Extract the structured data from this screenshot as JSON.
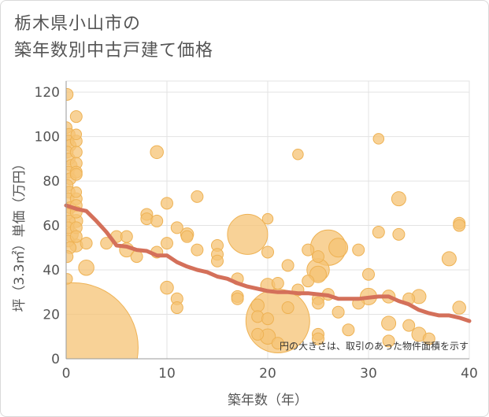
{
  "chart_data": {
    "type": "scatter",
    "title_lines": [
      "栃木県小山市の",
      "築年数別中古戸建て価格"
    ],
    "xlabel": "築年数（年）",
    "ylabel": "坪（3.3㎡）単価（万円）",
    "xlim": [
      0,
      40
    ],
    "ylim": [
      0,
      125
    ],
    "x_ticks": [
      0,
      10,
      20,
      30,
      40
    ],
    "y_ticks": [
      0,
      20,
      40,
      60,
      80,
      100,
      120
    ],
    "note": "円の大きさは、取引のあった物件面積を示す",
    "colors": {
      "bubble": "#f5c374",
      "bubble_stroke": "#eeb254",
      "trend": "#d4705a",
      "grid": "#e3e3e3",
      "axis": "#999999"
    },
    "points": [
      {
        "x": 0.1,
        "y": 119,
        "s": 1
      },
      {
        "x": 0,
        "y": 104,
        "s": 1
      },
      {
        "x": 0.3,
        "y": 101,
        "s": 1
      },
      {
        "x": 0.2,
        "y": 98,
        "s": 1
      },
      {
        "x": 0.4,
        "y": 96,
        "s": 1
      },
      {
        "x": 0.1,
        "y": 93,
        "s": 1
      },
      {
        "x": 0.3,
        "y": 90,
        "s": 1
      },
      {
        "x": 0.5,
        "y": 87,
        "s": 1
      },
      {
        "x": 0.2,
        "y": 84,
        "s": 1
      },
      {
        "x": 0.4,
        "y": 81,
        "s": 1
      },
      {
        "x": 0.1,
        "y": 78,
        "s": 1
      },
      {
        "x": 0.3,
        "y": 75,
        "s": 1
      },
      {
        "x": 0.2,
        "y": 72,
        "s": 1
      },
      {
        "x": 0.4,
        "y": 68,
        "s": 1
      },
      {
        "x": 0.1,
        "y": 65,
        "s": 1
      },
      {
        "x": 0.3,
        "y": 62,
        "s": 1
      },
      {
        "x": 0.2,
        "y": 59,
        "s": 1
      },
      {
        "x": 0.5,
        "y": 56,
        "s": 1.2
      },
      {
        "x": 0.2,
        "y": 53,
        "s": 1
      },
      {
        "x": 0.4,
        "y": 50,
        "s": 1
      },
      {
        "x": 0.1,
        "y": 46,
        "s": 1
      },
      {
        "x": 0.1,
        "y": 36,
        "s": 0.9
      },
      {
        "x": 1,
        "y": 109,
        "s": 1
      },
      {
        "x": 1,
        "y": 101,
        "s": 0.9
      },
      {
        "x": 1,
        "y": 98,
        "s": 1
      },
      {
        "x": 1,
        "y": 93,
        "s": 1
      },
      {
        "x": 1,
        "y": 88,
        "s": 1
      },
      {
        "x": 1,
        "y": 84,
        "s": 1
      },
      {
        "x": 1,
        "y": 83,
        "s": 1
      },
      {
        "x": 1,
        "y": 75,
        "s": 0.9
      },
      {
        "x": 1,
        "y": 72,
        "s": 1
      },
      {
        "x": 1,
        "y": 69,
        "s": 1
      },
      {
        "x": 1,
        "y": 66,
        "s": 1
      },
      {
        "x": 1,
        "y": 62,
        "s": 1.1
      },
      {
        "x": 1,
        "y": 59,
        "s": 1
      },
      {
        "x": 1,
        "y": 55,
        "s": 1
      },
      {
        "x": 1,
        "y": 51,
        "s": 1.1
      },
      {
        "x": 0.7,
        "y": 5,
        "s": 11
      },
      {
        "x": 2,
        "y": 52,
        "s": 1
      },
      {
        "x": 2,
        "y": 41,
        "s": 1.3
      },
      {
        "x": 4,
        "y": 52,
        "s": 1
      },
      {
        "x": 5,
        "y": 55,
        "s": 1
      },
      {
        "x": 6,
        "y": 55,
        "s": 1
      },
      {
        "x": 6,
        "y": 49,
        "s": 1.2
      },
      {
        "x": 7,
        "y": 46,
        "s": 1
      },
      {
        "x": 8,
        "y": 65,
        "s": 1
      },
      {
        "x": 8,
        "y": 63,
        "s": 1
      },
      {
        "x": 9,
        "y": 93,
        "s": 1.1
      },
      {
        "x": 9,
        "y": 62,
        "s": 1
      },
      {
        "x": 9,
        "y": 48,
        "s": 1
      },
      {
        "x": 10,
        "y": 70,
        "s": 1
      },
      {
        "x": 10,
        "y": 52,
        "s": 1
      },
      {
        "x": 10,
        "y": 32,
        "s": 1.1
      },
      {
        "x": 11,
        "y": 59,
        "s": 1
      },
      {
        "x": 11,
        "y": 27,
        "s": 1
      },
      {
        "x": 11,
        "y": 23,
        "s": 1
      },
      {
        "x": 12,
        "y": 56,
        "s": 1.1
      },
      {
        "x": 12,
        "y": 55,
        "s": 1
      },
      {
        "x": 13,
        "y": 73,
        "s": 1
      },
      {
        "x": 13,
        "y": 49,
        "s": 1
      },
      {
        "x": 15,
        "y": 51,
        "s": 1
      },
      {
        "x": 15,
        "y": 47,
        "s": 1
      },
      {
        "x": 15,
        "y": 44,
        "s": 1
      },
      {
        "x": 17,
        "y": 36,
        "s": 1
      },
      {
        "x": 17,
        "y": 28,
        "s": 1
      },
      {
        "x": 17,
        "y": 27,
        "s": 1
      },
      {
        "x": 18,
        "y": 56,
        "s": 3.4
      },
      {
        "x": 19,
        "y": 24,
        "s": 1.1
      },
      {
        "x": 19,
        "y": 19,
        "s": 1
      },
      {
        "x": 19,
        "y": 11,
        "s": 1
      },
      {
        "x": 20,
        "y": 63,
        "s": 0.9
      },
      {
        "x": 20,
        "y": 48,
        "s": 1
      },
      {
        "x": 20,
        "y": 33,
        "s": 1.2
      },
      {
        "x": 20,
        "y": 18,
        "s": 1
      },
      {
        "x": 20,
        "y": 10,
        "s": 1.3
      },
      {
        "x": 21,
        "y": 17,
        "s": 5.4
      },
      {
        "x": 21,
        "y": 34,
        "s": 1
      },
      {
        "x": 21,
        "y": 7,
        "s": 1
      },
      {
        "x": 22,
        "y": 42,
        "s": 1
      },
      {
        "x": 22,
        "y": 23,
        "s": 1
      },
      {
        "x": 23,
        "y": 92,
        "s": 0.9
      },
      {
        "x": 23,
        "y": 31,
        "s": 1
      },
      {
        "x": 24,
        "y": 49,
        "s": 1
      },
      {
        "x": 24,
        "y": 35,
        "s": 1
      },
      {
        "x": 25,
        "y": 46,
        "s": 1
      },
      {
        "x": 25,
        "y": 40,
        "s": 1.9
      },
      {
        "x": 25,
        "y": 38,
        "s": 1.4
      },
      {
        "x": 25,
        "y": 27,
        "s": 1
      },
      {
        "x": 25,
        "y": 25,
        "s": 1
      },
      {
        "x": 25,
        "y": 11,
        "s": 1
      },
      {
        "x": 25,
        "y": 9,
        "s": 1
      },
      {
        "x": 26,
        "y": 50,
        "s": 3
      },
      {
        "x": 26,
        "y": 29,
        "s": 1
      },
      {
        "x": 27,
        "y": 50,
        "s": 1.6
      },
      {
        "x": 27,
        "y": 21,
        "s": 1
      },
      {
        "x": 28,
        "y": 13,
        "s": 1
      },
      {
        "x": 29,
        "y": 49,
        "s": 1
      },
      {
        "x": 29,
        "y": 25,
        "s": 1
      },
      {
        "x": 30,
        "y": 38,
        "s": 1
      },
      {
        "x": 30,
        "y": 28,
        "s": 1.4
      },
      {
        "x": 31,
        "y": 99,
        "s": 0.9
      },
      {
        "x": 31,
        "y": 57,
        "s": 1
      },
      {
        "x": 32,
        "y": 28,
        "s": 1.1
      },
      {
        "x": 32,
        "y": 16,
        "s": 1.2
      },
      {
        "x": 32,
        "y": 8,
        "s": 1
      },
      {
        "x": 33,
        "y": 72,
        "s": 1.2
      },
      {
        "x": 33,
        "y": 56,
        "s": 1
      },
      {
        "x": 34,
        "y": 27,
        "s": 1
      },
      {
        "x": 34,
        "y": 15,
        "s": 1
      },
      {
        "x": 35,
        "y": 28,
        "s": 1.2
      },
      {
        "x": 35,
        "y": 11,
        "s": 1.2
      },
      {
        "x": 36,
        "y": 9,
        "s": 1
      },
      {
        "x": 38,
        "y": 45,
        "s": 1.2
      },
      {
        "x": 39,
        "y": 61,
        "s": 1
      },
      {
        "x": 39,
        "y": 60,
        "s": 1
      },
      {
        "x": 39,
        "y": 23,
        "s": 1.1
      }
    ],
    "trend": {
      "x": [
        0,
        1,
        2,
        3,
        4,
        5,
        6,
        7,
        8,
        9,
        10,
        11,
        12,
        13,
        14,
        15,
        16,
        17,
        18,
        19,
        20,
        21,
        22,
        23,
        24,
        25,
        26,
        27,
        28,
        29,
        30,
        31,
        32,
        33,
        34,
        35,
        36,
        37,
        38,
        39,
        40
      ],
      "y": [
        69,
        67.5,
        66.5,
        62,
        57,
        51,
        50.5,
        49,
        48.5,
        46.5,
        46.5,
        43.5,
        41.5,
        40,
        39,
        37,
        36,
        34,
        32.5,
        31.5,
        30.5,
        30,
        30,
        29.5,
        29.5,
        29,
        28.5,
        27,
        27,
        27,
        27.5,
        28,
        28,
        26,
        24.5,
        22,
        20.5,
        19.5,
        19.5,
        18.5,
        17
      ]
    }
  }
}
